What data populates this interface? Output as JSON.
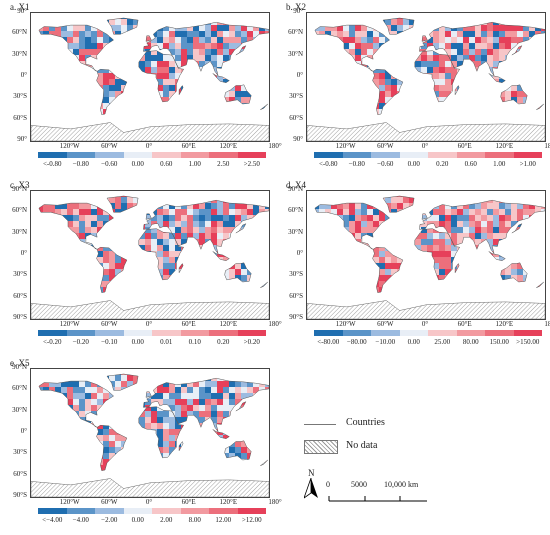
{
  "panels": [
    {
      "id": "a",
      "title": "a. X1",
      "legend": [
        "<-0.80",
        "−0.80",
        "−0.60",
        "0.00",
        "0.60",
        "1.00",
        "2.50",
        ">2.50"
      ],
      "colors": [
        "#1f6eb0",
        "#5b94c8",
        "#9cbbe0",
        "#e8eef6",
        "#f7c6c8",
        "#f29aa0",
        "#ec6f7c",
        "#e6405a"
      ],
      "balance": 0.55
    },
    {
      "id": "b",
      "title": "b. X2",
      "legend": [
        "<-0.80",
        "−0.80",
        "−0.60",
        "0.00",
        "0.20",
        "0.60",
        "1.00",
        ">1.00"
      ],
      "colors": [
        "#1f6eb0",
        "#5b94c8",
        "#9cbbe0",
        "#e8eef6",
        "#f7c6c8",
        "#f29aa0",
        "#ec6f7c",
        "#e6405a"
      ],
      "balance": 0.4
    },
    {
      "id": "c",
      "title": "c. X3",
      "legend": [
        "<-0.20",
        "−0.20",
        "−0.10",
        "0.00",
        "0.01",
        "0.10",
        "0.20",
        ">0.20"
      ],
      "colors": [
        "#1f6eb0",
        "#5b94c8",
        "#9cbbe0",
        "#e8eef6",
        "#f7c6c8",
        "#f29aa0",
        "#ec6f7c",
        "#e6405a"
      ],
      "balance": 0.5
    },
    {
      "id": "d",
      "title": "d. X4",
      "legend": [
        "<-80.00",
        "−80.00",
        "−10.00",
        "0.00",
        "25.00",
        "80.00",
        "150.00",
        ">150.00"
      ],
      "colors": [
        "#1f6eb0",
        "#5b94c8",
        "#9cbbe0",
        "#e8eef6",
        "#f7c6c8",
        "#f29aa0",
        "#ec6f7c",
        "#e6405a"
      ],
      "balance": 0.3
    },
    {
      "id": "e",
      "title": "e. X5",
      "legend": [
        "<−4.00",
        "−4.00",
        "−2.00",
        "0.00",
        "2.00",
        "8.00",
        "12.00",
        ">12.00"
      ],
      "colors": [
        "#1f6eb0",
        "#5b94c8",
        "#9cbbe0",
        "#e8eef6",
        "#f7c6c8",
        "#f29aa0",
        "#ec6f7c",
        "#e6405a"
      ],
      "balance": 0.55
    }
  ],
  "lat_labels": [
    "90°N",
    "60°N",
    "30°N",
    "0°",
    "30°S",
    "60°S",
    "90°S"
  ],
  "lat_labels_first": "90°",
  "lat_labels_last": "90°",
  "lon_labels": [
    "120°W",
    "60°W",
    "0°",
    "60°E",
    "120°E",
    "180°"
  ],
  "key": {
    "countries": "Countries",
    "nodata": "No data",
    "north": "N",
    "scale": [
      "0",
      "5000",
      "10,000 km"
    ]
  }
}
